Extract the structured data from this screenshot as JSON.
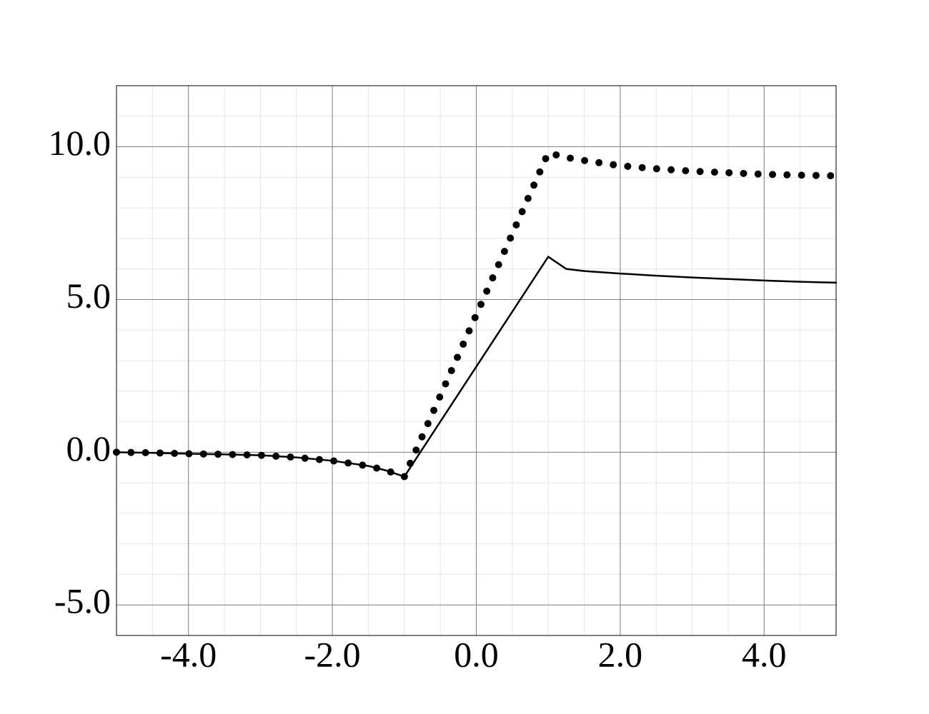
{
  "chart_data": {
    "type": "line",
    "x": [
      -5,
      -4.5,
      -4,
      -3.5,
      -3,
      -2.5,
      -2,
      -1.5,
      -1.25,
      -1,
      -0.5,
      0,
      0.5,
      1,
      1.25,
      1.5,
      2,
      2.5,
      3,
      3.5,
      4,
      4.5,
      5
    ],
    "series": [
      {
        "color": "#000000",
        "style": "solid",
        "values": [
          0,
          -0.02,
          -0.05,
          -0.07,
          -0.1,
          -0.17,
          -0.28,
          -0.45,
          -0.6,
          -0.8,
          1.0,
          2.8,
          4.6,
          6.4,
          6.0,
          5.93,
          5.85,
          5.78,
          5.72,
          5.67,
          5.62,
          5.58,
          5.55
        ]
      },
      {
        "color": "#000000",
        "style": "dotted",
        "values": [
          0,
          -0.02,
          -0.05,
          -0.07,
          -0.1,
          -0.17,
          -0.28,
          -0.45,
          -0.6,
          -0.8,
          1.85,
          4.5,
          7.15,
          9.8,
          9.65,
          9.55,
          9.38,
          9.28,
          9.2,
          9.15,
          9.1,
          9.07,
          9.05
        ]
      }
    ],
    "xlim": [
      -5,
      5
    ],
    "ylim": [
      -6,
      12
    ],
    "xticks": [
      {
        "value": -4,
        "label": "-4.0"
      },
      {
        "value": -2,
        "label": "-2.0"
      },
      {
        "value": 0,
        "label": "0.0"
      },
      {
        "value": 2,
        "label": "2.0"
      },
      {
        "value": 4,
        "label": "4.0"
      }
    ],
    "yticks": [
      {
        "value": -5,
        "label": "-5.0"
      },
      {
        "value": 0,
        "label": "0.0"
      },
      {
        "value": 5,
        "label": "5.0"
      },
      {
        "value": 10,
        "label": "10.0"
      }
    ],
    "grid": true,
    "minor_grid": true
  }
}
